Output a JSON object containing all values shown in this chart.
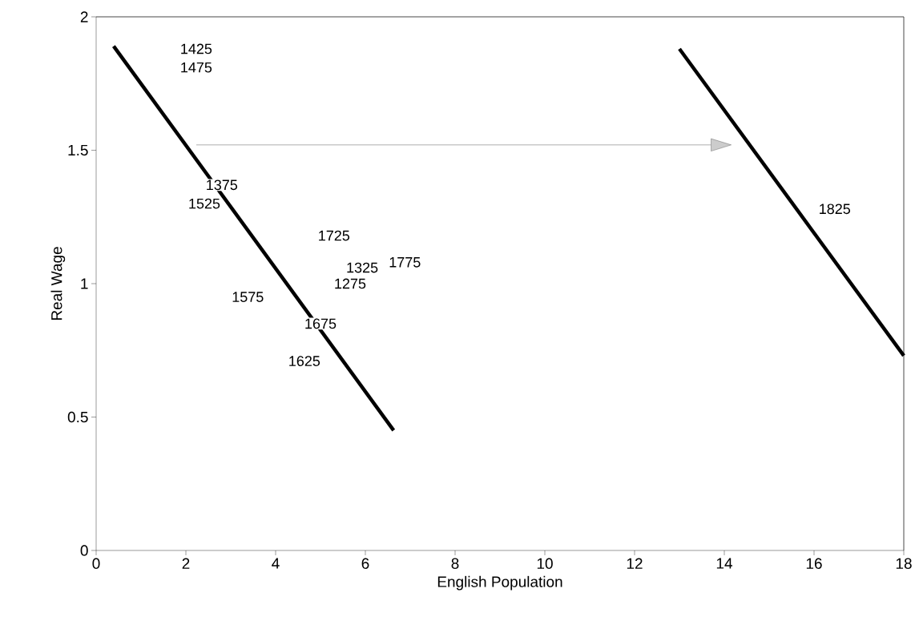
{
  "chart_data": {
    "type": "line",
    "xlabel": "English Population",
    "ylabel": "Real Wage",
    "xlim": [
      0,
      18
    ],
    "ylim": [
      0,
      2
    ],
    "xticks": [
      0,
      2,
      4,
      6,
      8,
      10,
      12,
      14,
      16,
      18
    ],
    "yticks": [
      0,
      0.5,
      1,
      1.5,
      2
    ],
    "series": [
      {
        "color": "#000000",
        "x": [
          0.39,
          6.63
        ],
        "values": [
          1.89,
          0.45
        ]
      },
      {
        "color": "#000000",
        "x": [
          13.0,
          18
        ],
        "values": [
          1.88,
          0.73
        ]
      }
    ],
    "annotations": [
      {
        "text": "1425",
        "x": 2.23,
        "y": 1.88
      },
      {
        "text": "1475",
        "x": 2.23,
        "y": 1.81
      },
      {
        "text": "1375",
        "x": 2.8,
        "y": 1.37
      },
      {
        "text": "1525",
        "x": 2.41,
        "y": 1.3
      },
      {
        "text": "1725",
        "x": 5.3,
        "y": 1.18
      },
      {
        "text": "1325",
        "x": 5.93,
        "y": 1.06
      },
      {
        "text": "1775",
        "x": 6.88,
        "y": 1.08
      },
      {
        "text": "1275",
        "x": 5.66,
        "y": 1.0
      },
      {
        "text": "1575",
        "x": 3.38,
        "y": 0.95
      },
      {
        "text": "1675",
        "x": 5.0,
        "y": 0.85
      },
      {
        "text": "1625",
        "x": 4.64,
        "y": 0.71
      },
      {
        "text": "1825",
        "x": 16.46,
        "y": 1.28
      }
    ]
  }
}
